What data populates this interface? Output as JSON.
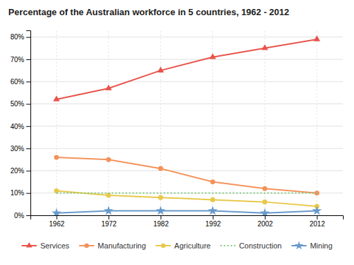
{
  "chart_data": {
    "type": "line",
    "title": "Percentage of the Australian workforce in 5 countries, 1962 - 2012",
    "x": [
      1962,
      1972,
      1982,
      1992,
      2002,
      2012
    ],
    "series": [
      {
        "name": "Services",
        "color": "#e8534a",
        "marker": "triangle",
        "line_style": "solid",
        "values": [
          52,
          57,
          65,
          71,
          75,
          79
        ]
      },
      {
        "name": "Manufacturing",
        "color": "#f4925a",
        "marker": "circle",
        "line_style": "solid",
        "values": [
          26,
          25,
          21,
          15,
          12,
          10
        ]
      },
      {
        "name": "Agriculture",
        "color": "#e8c84a",
        "marker": "circle",
        "line_style": "solid",
        "values": [
          11,
          9,
          8,
          7,
          6,
          4
        ]
      },
      {
        "name": "Construction",
        "color": "#7dc87d",
        "marker": "none",
        "line_style": "dotted",
        "values": [
          10,
          10,
          10,
          10,
          10,
          10
        ]
      },
      {
        "name": "Mining",
        "color": "#6699cc",
        "marker": "star",
        "line_style": "solid",
        "values": [
          1,
          2,
          2,
          2,
          1,
          2
        ]
      }
    ],
    "xlim": [
      1957,
      2017
    ],
    "xticks": [
      1962,
      1972,
      1982,
      1992,
      2002,
      2012
    ],
    "ylim": [
      0,
      83
    ],
    "yticks": [
      {
        "value": 0,
        "label": "0%"
      },
      {
        "value": 10,
        "label": "10%"
      },
      {
        "value": 20,
        "label": "20%"
      },
      {
        "value": 30,
        "label": "30%"
      },
      {
        "value": 40,
        "label": "40%"
      },
      {
        "value": 50,
        "label": "50%"
      },
      {
        "value": 60,
        "label": "60%"
      },
      {
        "value": 70,
        "label": "70%"
      },
      {
        "value": 80,
        "label": "80%"
      }
    ],
    "grid": true,
    "legend": "bottom"
  }
}
